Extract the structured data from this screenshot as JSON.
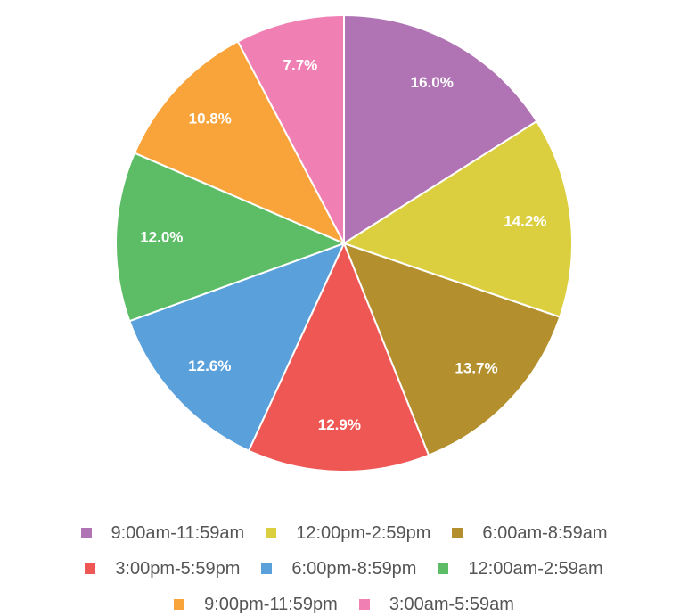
{
  "chart_data": {
    "type": "pie",
    "categories": [
      "9:00am-11:59am",
      "12:00pm-2:59pm",
      "6:00am-8:59am",
      "3:00pm-5:59pm",
      "6:00pm-8:59pm",
      "12:00am-2:59am",
      "9:00pm-11:59pm",
      "3:00am-5:59am"
    ],
    "values": [
      16.0,
      14.2,
      13.7,
      12.9,
      12.6,
      12.0,
      10.8,
      7.7
    ],
    "value_labels": [
      "16.0%",
      "14.2%",
      "13.7%",
      "12.9%",
      "12.6%",
      "12.0%",
      "10.8%",
      "7.7%"
    ],
    "colors": [
      "#b074b4",
      "#dccf3f",
      "#b38f2e",
      "#ef5754",
      "#5aa1dc",
      "#5dbd66",
      "#f9a43a",
      "#f07fb4"
    ],
    "legend": "bottom"
  }
}
